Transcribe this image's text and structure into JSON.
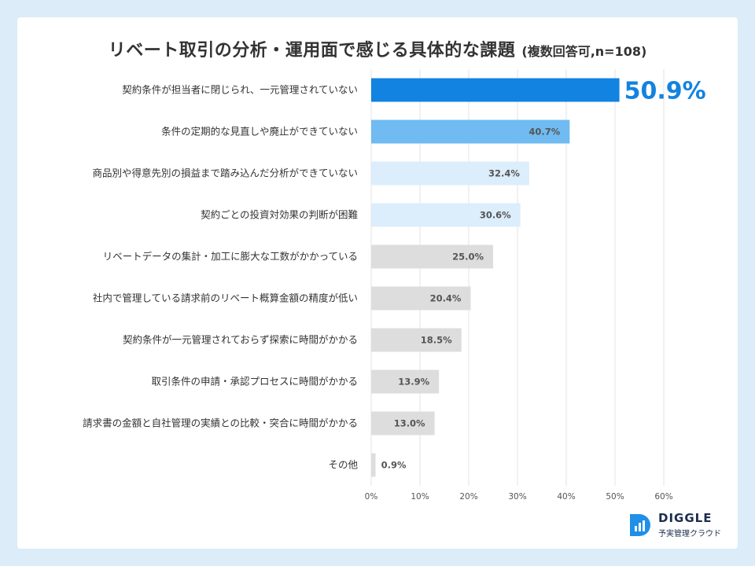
{
  "title": "リベート取引の分析・運用面で感じる具体的な課題",
  "subtitle": "(複数回答可,n=108)",
  "colors": {
    "top": "#1283e0",
    "second": "#6fbbf2",
    "light": "#dcedfb",
    "gray": "#dddddd",
    "highlight_text": "#1283e0"
  },
  "chart_data": {
    "type": "bar",
    "orientation": "horizontal",
    "title": "リベート取引の分析・運用面で感じる具体的な課題 (複数回答可,n=108)",
    "categories": [
      "契約条件が担当者に閉じられ、一元管理されていない",
      "条件の定期的な見直しや廃止ができていない",
      "商品別や得意先別の損益まで踏み込んだ分析ができていない",
      "契約ごとの投資対効果の判断が困難",
      "リベートデータの集計・加工に膨大な工数がかかっている",
      "社内で管理している請求前のリベート概算金額の精度が低い",
      "契約条件が一元管理されておらず探索に時間がかかる",
      "取引条件の申請・承認プロセスに時間がかかる",
      "請求書の金額と自社管理の実績との比較・突合に時間がかかる",
      "その他"
    ],
    "values": [
      50.9,
      40.7,
      32.4,
      30.6,
      25.0,
      20.4,
      18.5,
      13.9,
      13.0,
      0.9
    ],
    "value_labels": [
      "50.9%",
      "40.7%",
      "32.4%",
      "30.6%",
      "25.0%",
      "20.4%",
      "18.5%",
      "13.9%",
      "13.0%",
      "0.9%"
    ],
    "color_groups": [
      "top",
      "second",
      "light",
      "light",
      "gray",
      "gray",
      "gray",
      "gray",
      "gray",
      "gray"
    ],
    "xlim": [
      0,
      60
    ],
    "xticks": [
      "0%",
      "10%",
      "20%",
      "30%",
      "40%",
      "50%",
      "60%"
    ],
    "grid": true
  },
  "logo": {
    "name": "DIGGLE",
    "tagline": "予実管理クラウド"
  }
}
